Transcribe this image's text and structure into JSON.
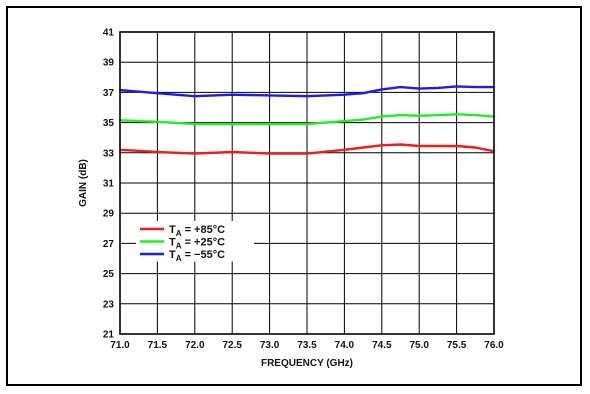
{
  "chart_data": {
    "type": "line",
    "title": "",
    "xlabel": "FREQUENCY (GHz)",
    "ylabel": "GAIN (dB)",
    "xlim": [
      71.0,
      76.0
    ],
    "ylim": [
      21,
      41
    ],
    "xticks": [
      "71.0",
      "71.5",
      "72.0",
      "72.5",
      "73.0",
      "73.5",
      "74.0",
      "74.5",
      "75.0",
      "75.5",
      "76.0"
    ],
    "yticks": [
      "21",
      "23",
      "25",
      "27",
      "29",
      "31",
      "33",
      "35",
      "37",
      "39",
      "41"
    ],
    "grid": true,
    "legend_position": "lower-left",
    "series": [
      {
        "name_main": "T",
        "name_sub": "A",
        "name_rest": " = +85°C",
        "color": "#ee1c1c",
        "x": [
          71.0,
          71.5,
          72.0,
          72.5,
          73.0,
          73.5,
          74.0,
          74.25,
          74.5,
          74.75,
          75.0,
          75.25,
          75.5,
          75.75,
          76.0
        ],
        "y": [
          33.2,
          33.05,
          32.95,
          33.05,
          32.95,
          32.95,
          33.2,
          33.35,
          33.5,
          33.55,
          33.45,
          33.45,
          33.45,
          33.35,
          33.1
        ]
      },
      {
        "name_main": "T",
        "name_sub": "A",
        "name_rest": " = +25°C",
        "color": "#22ee22",
        "x": [
          71.0,
          71.5,
          72.0,
          72.5,
          73.0,
          73.5,
          74.0,
          74.25,
          74.5,
          74.75,
          75.0,
          75.25,
          75.5,
          75.75,
          76.0
        ],
        "y": [
          35.15,
          35.05,
          34.9,
          34.9,
          34.9,
          34.9,
          35.1,
          35.2,
          35.4,
          35.5,
          35.45,
          35.5,
          35.55,
          35.5,
          35.4
        ]
      },
      {
        "name_main": "T",
        "name_sub": "A",
        "name_rest": " = −55°C",
        "color": "#1c1cee",
        "x": [
          71.0,
          71.5,
          72.0,
          72.5,
          73.0,
          73.5,
          74.0,
          74.25,
          74.5,
          74.75,
          75.0,
          75.25,
          75.5,
          75.75,
          76.0
        ],
        "y": [
          37.15,
          36.95,
          36.75,
          36.85,
          36.8,
          36.75,
          36.85,
          36.95,
          37.2,
          37.35,
          37.25,
          37.3,
          37.4,
          37.35,
          37.35
        ]
      }
    ]
  }
}
